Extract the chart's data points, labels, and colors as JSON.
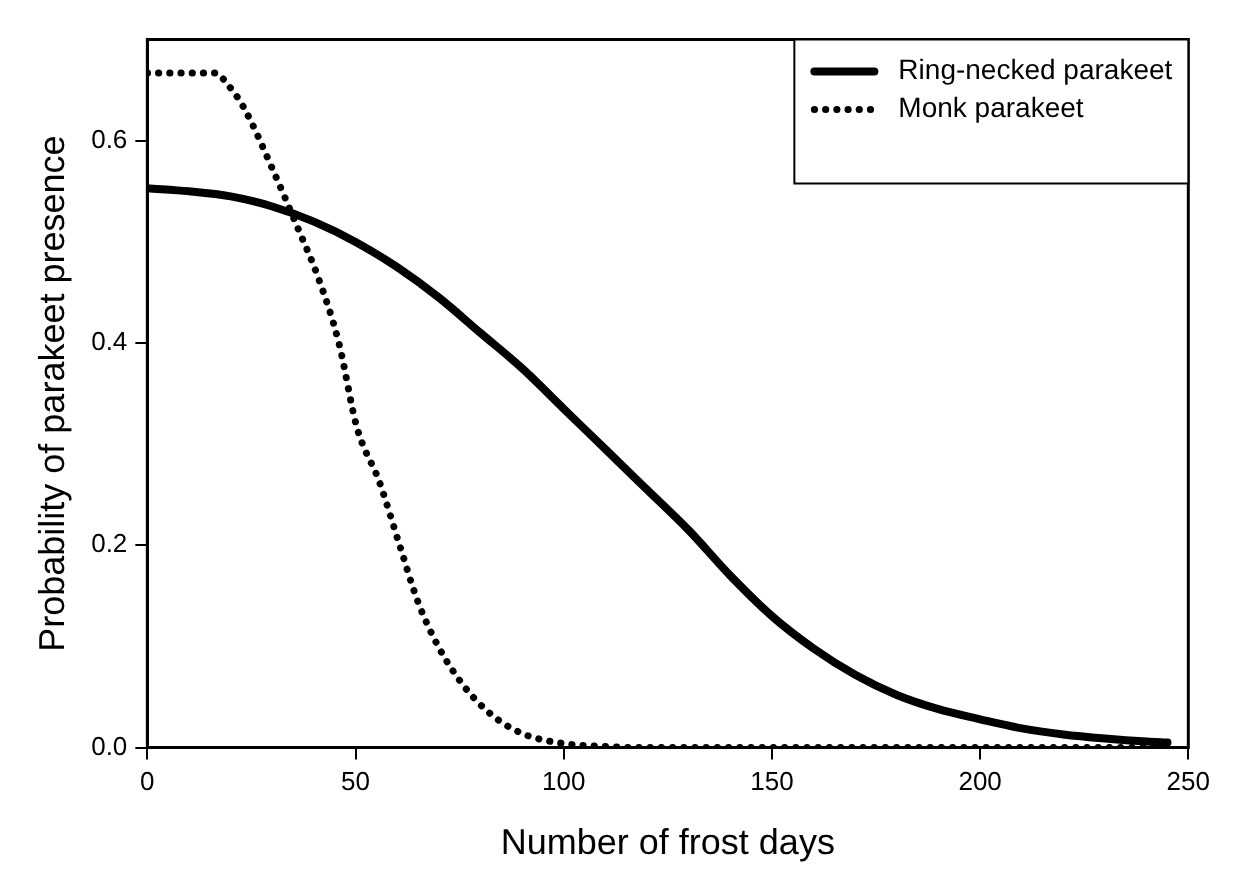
{
  "chart_data": {
    "type": "line",
    "xlabel": "Number of frost days",
    "ylabel": "Probability of parakeet presence",
    "xlim": [
      0,
      250
    ],
    "xticks": [
      0,
      50,
      100,
      150,
      200,
      250
    ],
    "ylim": [
      0,
      0.7
    ],
    "yticks": [
      {
        "value": 0,
        "label": "0.0"
      },
      {
        "value": 0.2,
        "label": "0.2"
      },
      {
        "value": 0.4,
        "label": "0.4"
      },
      {
        "value": 0.6,
        "label": "0.6"
      }
    ],
    "grid": false,
    "legend": "top right",
    "marker": "none",
    "series": [
      {
        "name": "Ring-necked parakeet",
        "color": "#000000",
        "line_style": "solid",
        "x": [
          0,
          10,
          20,
          30,
          40,
          50,
          60,
          70,
          80,
          90,
          100,
          110,
          120,
          130,
          140,
          150,
          160,
          170,
          180,
          190,
          200,
          210,
          220,
          230,
          240,
          245
        ],
        "values": [
          0.553,
          0.55,
          0.545,
          0.535,
          0.52,
          0.5,
          0.475,
          0.445,
          0.41,
          0.375,
          0.335,
          0.295,
          0.255,
          0.215,
          0.17,
          0.13,
          0.098,
          0.072,
          0.052,
          0.038,
          0.028,
          0.019,
          0.013,
          0.009,
          0.006,
          0.005
        ]
      },
      {
        "name": "Monk parakeet",
        "color": "#000000",
        "line_style": "dotted",
        "x": [
          0,
          10,
          16.5,
          19,
          23,
          30.7,
          36,
          41,
          46,
          50.3,
          55.7,
          60.6,
          65,
          70,
          76,
          82.5,
          90,
          100,
          110,
          120,
          150,
          200,
          245
        ],
        "values": [
          0.667,
          0.667,
          0.667,
          0.657,
          0.634,
          0.566,
          0.515,
          0.465,
          0.4,
          0.317,
          0.263,
          0.2,
          0.144,
          0.099,
          0.061,
          0.033,
          0.014,
          0.004,
          0.001,
          0,
          0,
          0,
          0
        ]
      }
    ]
  }
}
